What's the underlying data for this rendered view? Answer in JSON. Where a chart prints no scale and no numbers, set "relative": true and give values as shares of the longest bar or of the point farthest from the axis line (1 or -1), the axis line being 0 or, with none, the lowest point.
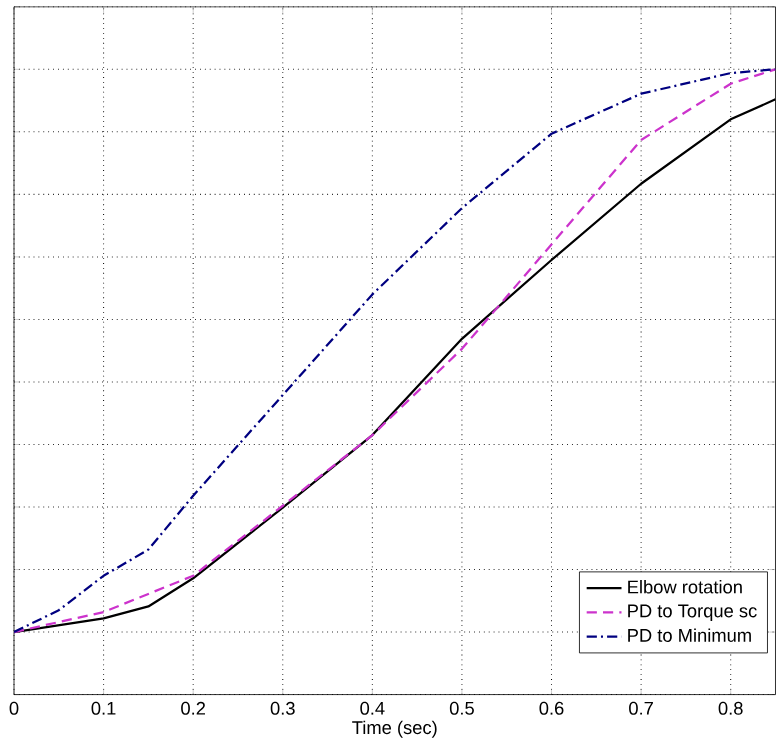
{
  "chart_data": {
    "type": "line",
    "xlabel": "Time (sec)",
    "relative": true,
    "grid": true,
    "legend": "bottom right",
    "tick_labels": "x",
    "xlim": [
      0,
      0.85
    ],
    "xticks": [
      0,
      0.1,
      0.2,
      0.3,
      0.4,
      0.5,
      0.6,
      0.7,
      0.8
    ],
    "marker": "none",
    "series": [
      {
        "name": "Elbow rotation",
        "color": "#000000",
        "line_style": "solid",
        "x": [
          0,
          0.1,
          0.15,
          0.2,
          0.3,
          0.4,
          0.5,
          0.6,
          0.7,
          0.8,
          0.85
        ],
        "values": [
          0.1,
          0.122,
          0.141,
          0.186,
          0.299,
          0.415,
          0.569,
          0.695,
          0.817,
          0.92,
          0.952
        ]
      },
      {
        "name": "PD to Torque sc",
        "color": "#cc33cc",
        "line_style": "dashed",
        "x": [
          0,
          0.1,
          0.2,
          0.3,
          0.4,
          0.5,
          0.6,
          0.7,
          0.8,
          0.85
        ],
        "values": [
          0.1,
          0.132,
          0.19,
          0.302,
          0.415,
          0.553,
          0.72,
          0.887,
          0.977,
          1.0
        ]
      },
      {
        "name": "PD to Minimum",
        "color": "#000080",
        "line_style": "dashdot",
        "x": [
          0,
          0.05,
          0.1,
          0.15,
          0.2,
          0.3,
          0.4,
          0.5,
          0.6,
          0.7,
          0.8,
          0.85
        ],
        "values": [
          0.1,
          0.135,
          0.19,
          0.232,
          0.318,
          0.479,
          0.64,
          0.778,
          0.897,
          0.961,
          0.994,
          1.0
        ]
      }
    ]
  }
}
